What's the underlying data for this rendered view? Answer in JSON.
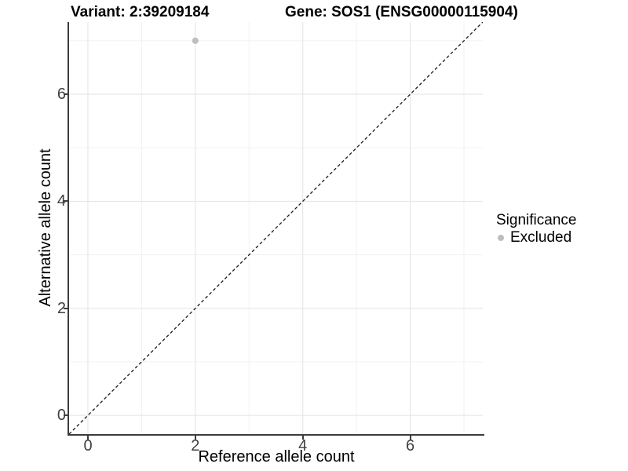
{
  "header": {
    "variant_title": "Variant: 2:39209184",
    "gene_title": "Gene: SOS1 (ENSG00000115904)"
  },
  "axes": {
    "x": {
      "label": "Reference allele count",
      "tick_labels": [
        "0",
        "2",
        "4",
        "6"
      ]
    },
    "y": {
      "label": "Alternative allele count",
      "tick_labels": [
        "0",
        "2",
        "4",
        "6"
      ]
    }
  },
  "legend": {
    "title": "Significance",
    "items": [
      {
        "label": "Excluded",
        "color": "#bebebe"
      }
    ]
  },
  "colors": {
    "background": "#ffffff",
    "axis_line": "#3c3c3c",
    "tick_label": "#404040",
    "major_grid": "#e3e3e3",
    "minor_grid": "#f1f1f1",
    "identity_line": "#1a1a1a",
    "point": "#bebebe",
    "title_text": "#000000"
  },
  "chart_data": {
    "type": "scatter",
    "title": "Variant: 2:39209184 — Gene: SOS1 (ENSG00000115904)",
    "xlabel": "Reference allele count",
    "ylabel": "Alternative allele count",
    "xlim": [
      -0.35,
      7.35
    ],
    "ylim": [
      -0.35,
      7.35
    ],
    "x_major_ticks": [
      0,
      2,
      4,
      6
    ],
    "x_minor_ticks": [
      1,
      3,
      5,
      7
    ],
    "y_major_ticks": [
      0,
      2,
      4,
      6
    ],
    "y_minor_ticks": [
      1,
      3,
      5,
      7
    ],
    "grid": "major+minor",
    "legend_position": "right",
    "legend_title": "Significance",
    "series": [
      {
        "name": "Excluded",
        "color": "#bebebe",
        "point_radius_px": 4,
        "points": [
          {
            "x": 2,
            "y": 7
          }
        ]
      }
    ],
    "reference_line": {
      "style": "dashed",
      "slope": 1,
      "intercept": 0,
      "color": "#1a1a1a",
      "note": "identity line y = x spanning full axis range"
    }
  }
}
